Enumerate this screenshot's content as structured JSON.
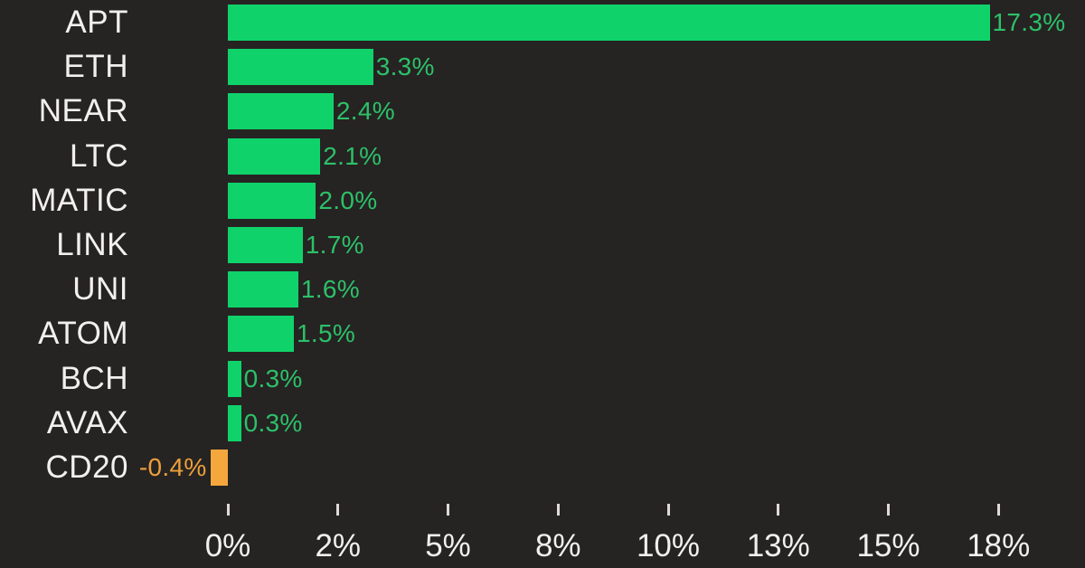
{
  "colors": {
    "background": "#262323",
    "positive_bar": "#0fd36a",
    "positive_text": "#2cc168",
    "negative_bar": "#f5a73d",
    "negative_text": "#eda03a",
    "category_text": "#f2efef",
    "axis_text": "#f2efef",
    "tick_mark": "#dedada"
  },
  "chart_data": {
    "type": "bar",
    "orientation": "horizontal",
    "title": "",
    "xlabel": "",
    "ylabel": "",
    "grid": false,
    "legend": false,
    "categories": [
      "APT",
      "ETH",
      "NEAR",
      "LTC",
      "MATIC",
      "LINK",
      "UNI",
      "ATOM",
      "BCH",
      "AVAX",
      "CD20"
    ],
    "values": [
      17.3,
      3.3,
      2.4,
      2.1,
      2.0,
      1.7,
      1.6,
      1.5,
      0.3,
      0.3,
      -0.4
    ],
    "value_labels": [
      "17.3%",
      "3.3%",
      "2.4%",
      "2.1%",
      "2.0%",
      "1.7%",
      "1.6%",
      "1.5%",
      "0.3%",
      "0.3%",
      "-0.4%"
    ],
    "x_axis": {
      "min": -2.1,
      "max": 19.4,
      "tick_values": [
        0,
        2.5,
        5,
        7.5,
        10,
        12.5,
        15,
        17.5
      ],
      "tick_labels": [
        "0%",
        "2%",
        "5%",
        "8%",
        "10%",
        "13%",
        "15%",
        "18%"
      ]
    }
  }
}
